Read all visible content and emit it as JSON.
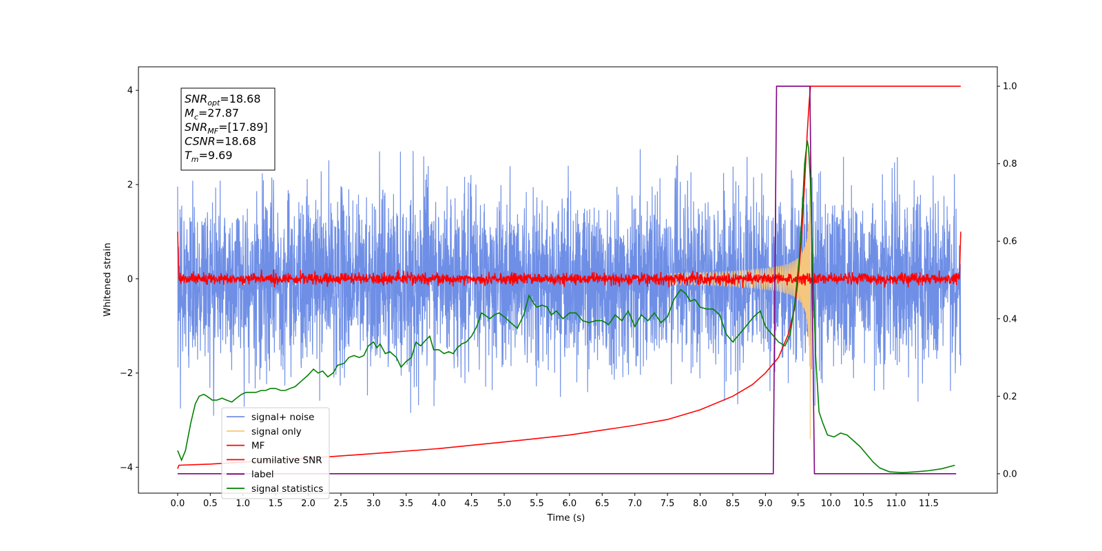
{
  "chart_data": {
    "type": "line",
    "xlabel": "Time (s)",
    "ylabel": "Whitened strain",
    "xlim": [
      -0.6,
      12.55
    ],
    "ylim": [
      -4.55,
      4.5
    ],
    "y2lim": [
      -0.05,
      1.05
    ],
    "xticks": [
      0.0,
      0.5,
      1.0,
      1.5,
      2.0,
      2.5,
      3.0,
      3.5,
      4.0,
      4.5,
      5.0,
      5.5,
      6.0,
      6.5,
      7.0,
      7.5,
      8.0,
      8.5,
      9.0,
      9.5,
      10.0,
      10.5,
      11.0,
      11.5
    ],
    "xtick_labels": [
      "0.0",
      "0.5",
      "1.0",
      "1.5",
      "2.0",
      "2.5",
      "3.0",
      "3.5",
      "4.0",
      "4.5",
      "5.0",
      "5.5",
      "6.0",
      "6.5",
      "7.0",
      "7.5",
      "8.0",
      "8.5",
      "9.0",
      "9.5",
      "10.0",
      "10.5",
      "11.0",
      "11.5"
    ],
    "yticks": [
      4,
      2,
      0,
      -2,
      -4
    ],
    "ytick_labels": [
      "4",
      "2",
      "0",
      "−2",
      "−4"
    ],
    "y2ticks": [
      1.0,
      0.8,
      0.6,
      0.4,
      0.2,
      0.0
    ],
    "y2tick_labels": [
      "1.0",
      "0.8",
      "0.6",
      "0.4",
      "0.2",
      "0.0"
    ],
    "grid": false,
    "legend_position": "lower-left",
    "annotation": {
      "lines": [
        {
          "base": "SNR",
          "sub": "opt",
          "value": "=18.68"
        },
        {
          "base": "M",
          "sub": "c",
          "value": "=27.87"
        },
        {
          "base": "SNR",
          "sub": "MF",
          "value": "=[17.89]"
        },
        {
          "base": "CSNR",
          "sub": "",
          "value": "=18.68"
        },
        {
          "base": "T",
          "sub": "m",
          "value": "=9.69"
        }
      ]
    },
    "series": [
      {
        "name": "signal+ noise",
        "axis": "left",
        "color": "#6f8fe6",
        "style": "noise",
        "t_start": 0.0,
        "t_end": 11.99,
        "upper_envelope": [
          [
            0.0,
            2.1
          ],
          [
            1.0,
            2.2
          ],
          [
            2.0,
            3.0
          ],
          [
            3.0,
            2.9
          ],
          [
            4.0,
            2.7
          ],
          [
            5.0,
            2.8
          ],
          [
            6.0,
            2.7
          ],
          [
            7.0,
            2.8
          ],
          [
            8.0,
            2.7
          ],
          [
            9.0,
            2.8
          ],
          [
            9.5,
            3.9
          ],
          [
            10.0,
            3.5
          ],
          [
            11.0,
            2.9
          ],
          [
            11.99,
            2.3
          ]
        ],
        "lower_envelope": [
          [
            0.0,
            -2.9
          ],
          [
            1.0,
            -3.0
          ],
          [
            2.0,
            -3.1
          ],
          [
            3.0,
            -3.3
          ],
          [
            4.0,
            -3.3
          ],
          [
            5.0,
            -3.2
          ],
          [
            6.0,
            -3.1
          ],
          [
            7.0,
            -3.0
          ],
          [
            8.0,
            -3.0
          ],
          [
            9.0,
            -2.9
          ],
          [
            9.6,
            -4.1
          ],
          [
            10.0,
            -3.3
          ],
          [
            11.0,
            -3.0
          ],
          [
            11.99,
            -2.9
          ]
        ]
      },
      {
        "name": "signal only",
        "axis": "left",
        "color": "#f5c77e",
        "style": "chirp",
        "t_start": 7.5,
        "t_merge": 9.69,
        "peak_amplitude": 3.9
      },
      {
        "name": "MF",
        "axis": "left",
        "color": "#ff0000",
        "style": "mf",
        "t_start": 0.0,
        "t_end": 11.99,
        "edge_value": 1.0,
        "noise_amplitude": 0.12
      },
      {
        "name": "cumilative SNR",
        "axis": "right",
        "color": "#ff0000",
        "style": "line",
        "points": [
          [
            0.0,
            0.013
          ],
          [
            0.02,
            0.022
          ],
          [
            0.5,
            0.025
          ],
          [
            1.0,
            0.03
          ],
          [
            2.0,
            0.04
          ],
          [
            3.0,
            0.052
          ],
          [
            4.0,
            0.065
          ],
          [
            5.0,
            0.082
          ],
          [
            6.0,
            0.1
          ],
          [
            7.0,
            0.125
          ],
          [
            7.5,
            0.14
          ],
          [
            8.0,
            0.165
          ],
          [
            8.5,
            0.2
          ],
          [
            8.8,
            0.23
          ],
          [
            9.0,
            0.26
          ],
          [
            9.2,
            0.3
          ],
          [
            9.35,
            0.36
          ],
          [
            9.45,
            0.43
          ],
          [
            9.5,
            0.5
          ],
          [
            9.55,
            0.6
          ],
          [
            9.6,
            0.75
          ],
          [
            9.64,
            0.88
          ],
          [
            9.67,
            0.96
          ],
          [
            9.69,
            1.0
          ],
          [
            11.99,
            1.0
          ]
        ]
      },
      {
        "name": "label",
        "axis": "right",
        "color": "#800080",
        "style": "line",
        "points": [
          [
            0.0,
            0.0
          ],
          [
            9.12,
            0.0
          ],
          [
            9.17,
            1.0
          ],
          [
            9.68,
            1.0
          ],
          [
            9.75,
            0.0
          ],
          [
            11.92,
            0.0
          ]
        ]
      },
      {
        "name": "signal statistics",
        "axis": "right",
        "color": "#008000",
        "style": "line",
        "points": [
          [
            0.0,
            0.06
          ],
          [
            0.06,
            0.035
          ],
          [
            0.12,
            0.06
          ],
          [
            0.2,
            0.13
          ],
          [
            0.27,
            0.18
          ],
          [
            0.33,
            0.2
          ],
          [
            0.4,
            0.205
          ],
          [
            0.45,
            0.2
          ],
          [
            0.53,
            0.19
          ],
          [
            0.6,
            0.19
          ],
          [
            0.68,
            0.195
          ],
          [
            0.75,
            0.19
          ],
          [
            0.83,
            0.185
          ],
          [
            0.9,
            0.195
          ],
          [
            0.98,
            0.205
          ],
          [
            1.05,
            0.21
          ],
          [
            1.12,
            0.21
          ],
          [
            1.2,
            0.21
          ],
          [
            1.28,
            0.215
          ],
          [
            1.35,
            0.215
          ],
          [
            1.42,
            0.22
          ],
          [
            1.5,
            0.22
          ],
          [
            1.58,
            0.215
          ],
          [
            1.65,
            0.215
          ],
          [
            1.72,
            0.22
          ],
          [
            1.8,
            0.225
          ],
          [
            1.9,
            0.24
          ],
          [
            2.0,
            0.255
          ],
          [
            2.08,
            0.27
          ],
          [
            2.15,
            0.26
          ],
          [
            2.22,
            0.265
          ],
          [
            2.3,
            0.25
          ],
          [
            2.38,
            0.26
          ],
          [
            2.45,
            0.28
          ],
          [
            2.55,
            0.285
          ],
          [
            2.62,
            0.3
          ],
          [
            2.7,
            0.305
          ],
          [
            2.78,
            0.3
          ],
          [
            2.85,
            0.305
          ],
          [
            2.92,
            0.33
          ],
          [
            3.0,
            0.34
          ],
          [
            3.05,
            0.325
          ],
          [
            3.1,
            0.335
          ],
          [
            3.18,
            0.31
          ],
          [
            3.25,
            0.315
          ],
          [
            3.35,
            0.3
          ],
          [
            3.42,
            0.275
          ],
          [
            3.5,
            0.29
          ],
          [
            3.58,
            0.3
          ],
          [
            3.65,
            0.34
          ],
          [
            3.72,
            0.33
          ],
          [
            3.8,
            0.345
          ],
          [
            3.86,
            0.355
          ],
          [
            3.92,
            0.32
          ],
          [
            4.0,
            0.32
          ],
          [
            4.08,
            0.31
          ],
          [
            4.15,
            0.315
          ],
          [
            4.22,
            0.31
          ],
          [
            4.28,
            0.325
          ],
          [
            4.35,
            0.335
          ],
          [
            4.42,
            0.34
          ],
          [
            4.5,
            0.355
          ],
          [
            4.58,
            0.38
          ],
          [
            4.65,
            0.415
          ],
          [
            4.7,
            0.41
          ],
          [
            4.78,
            0.4
          ],
          [
            4.85,
            0.41
          ],
          [
            4.92,
            0.415
          ],
          [
            5.0,
            0.405
          ],
          [
            5.1,
            0.39
          ],
          [
            5.2,
            0.375
          ],
          [
            5.3,
            0.41
          ],
          [
            5.38,
            0.46
          ],
          [
            5.45,
            0.44
          ],
          [
            5.5,
            0.43
          ],
          [
            5.58,
            0.435
          ],
          [
            5.66,
            0.43
          ],
          [
            5.72,
            0.41
          ],
          [
            5.8,
            0.42
          ],
          [
            5.9,
            0.4
          ],
          [
            6.0,
            0.415
          ],
          [
            6.1,
            0.415
          ],
          [
            6.2,
            0.395
          ],
          [
            6.3,
            0.39
          ],
          [
            6.4,
            0.395
          ],
          [
            6.5,
            0.395
          ],
          [
            6.6,
            0.385
          ],
          [
            6.7,
            0.41
          ],
          [
            6.8,
            0.395
          ],
          [
            6.9,
            0.42
          ],
          [
            7.0,
            0.38
          ],
          [
            7.1,
            0.41
          ],
          [
            7.2,
            0.395
          ],
          [
            7.3,
            0.415
          ],
          [
            7.4,
            0.39
          ],
          [
            7.5,
            0.405
          ],
          [
            7.6,
            0.45
          ],
          [
            7.7,
            0.475
          ],
          [
            7.78,
            0.465
          ],
          [
            7.85,
            0.445
          ],
          [
            7.92,
            0.45
          ],
          [
            8.0,
            0.43
          ],
          [
            8.1,
            0.425
          ],
          [
            8.2,
            0.425
          ],
          [
            8.3,
            0.41
          ],
          [
            8.4,
            0.36
          ],
          [
            8.5,
            0.34
          ],
          [
            8.6,
            0.36
          ],
          [
            8.7,
            0.38
          ],
          [
            8.82,
            0.405
          ],
          [
            8.92,
            0.42
          ],
          [
            9.0,
            0.38
          ],
          [
            9.1,
            0.36
          ],
          [
            9.2,
            0.34
          ],
          [
            9.3,
            0.33
          ],
          [
            9.38,
            0.36
          ],
          [
            9.45,
            0.44
          ],
          [
            9.52,
            0.56
          ],
          [
            9.57,
            0.7
          ],
          [
            9.6,
            0.8
          ],
          [
            9.64,
            0.86
          ],
          [
            9.66,
            0.84
          ],
          [
            9.69,
            0.75
          ],
          [
            9.72,
            0.55
          ],
          [
            9.77,
            0.3
          ],
          [
            9.82,
            0.16
          ],
          [
            9.88,
            0.13
          ],
          [
            9.95,
            0.1
          ],
          [
            10.05,
            0.095
          ],
          [
            10.15,
            0.105
          ],
          [
            10.25,
            0.1
          ],
          [
            10.35,
            0.085
          ],
          [
            10.45,
            0.07
          ],
          [
            10.55,
            0.05
          ],
          [
            10.65,
            0.03
          ],
          [
            10.75,
            0.015
          ],
          [
            10.9,
            0.005
          ],
          [
            11.1,
            0.003
          ],
          [
            11.3,
            0.005
          ],
          [
            11.5,
            0.008
          ],
          [
            11.7,
            0.013
          ],
          [
            11.9,
            0.022
          ]
        ]
      }
    ],
    "legend": [
      "signal+ noise",
      "signal only",
      "MF",
      "cumilative SNR",
      "label",
      "signal statistics"
    ]
  }
}
